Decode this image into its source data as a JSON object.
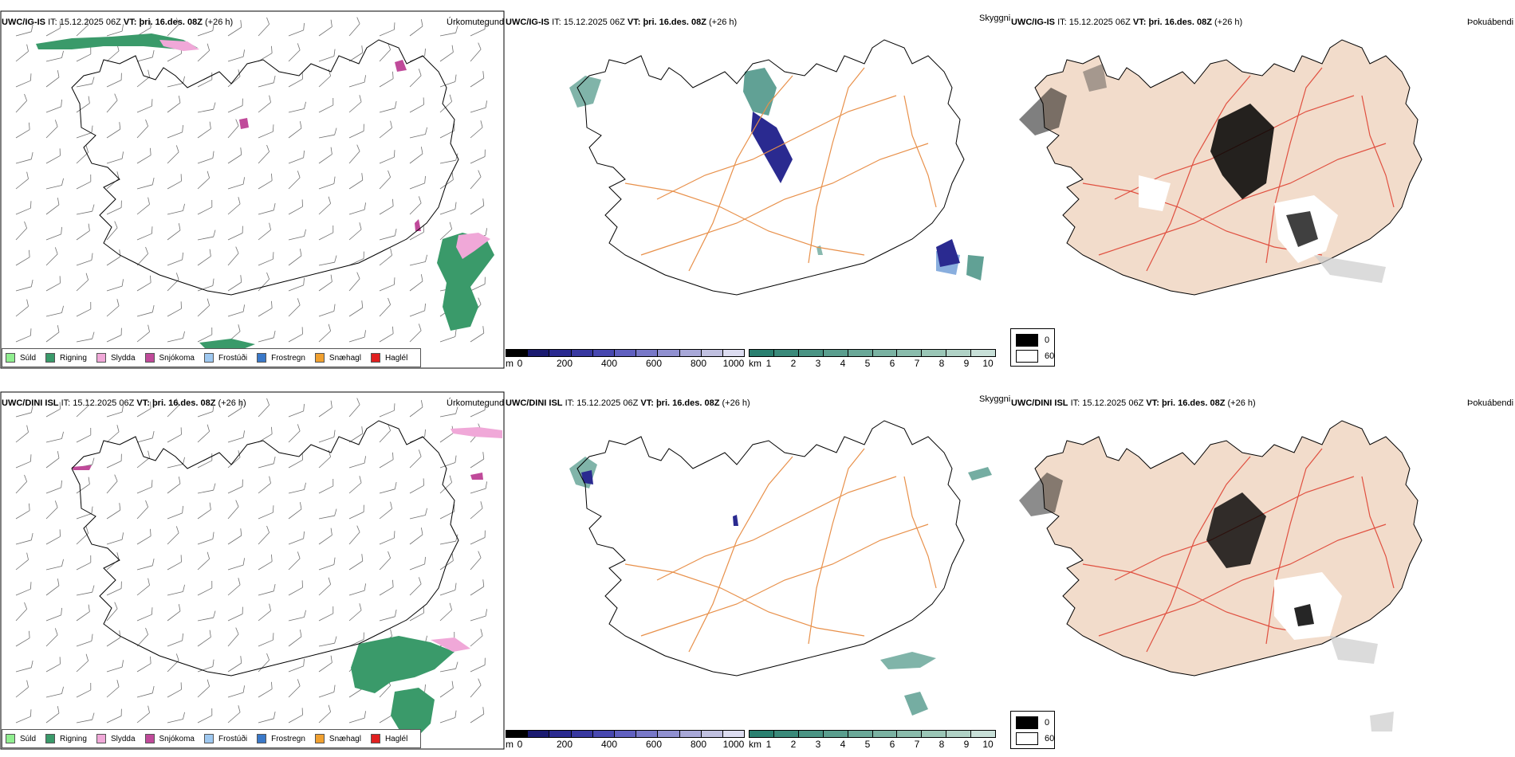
{
  "rows": [
    {
      "windmap": {
        "model": "UWC/IG-IS",
        "it_label": "IT:",
        "it_value": "15.12.2025 06Z",
        "vt_label": "VT:",
        "vt_value": "þri. 16.des. 08Z",
        "lead": "(+26 h)",
        "title": "Úrkomutegund"
      },
      "vismap": {
        "model": "UWC/IG-IS",
        "it_label": "IT:",
        "it_value": "15.12.2025 06Z",
        "vt_label": "VT:",
        "vt_value": "þri. 16.des. 08Z",
        "lead": "(+26 h)",
        "title": "Skyggni"
      },
      "fogmap": {
        "model": "UWC/IG-IS",
        "it_label": "IT:",
        "it_value": "15.12.2025 06Z",
        "vt_label": "VT:",
        "vt_value": "þri. 16.des. 08Z",
        "lead": "(+26 h)",
        "title": "Þokuábendi"
      }
    },
    {
      "windmap": {
        "model": "UWC/DINI ISL",
        "it_label": "IT:",
        "it_value": "15.12.2025 06Z",
        "vt_label": "VT:",
        "vt_value": "þri. 16.des. 08Z",
        "lead": "(+26 h)",
        "title": "Úrkomutegund"
      },
      "vismap": {
        "model": "UWC/DINI ISL",
        "it_label": "IT:",
        "it_value": "15.12.2025 06Z",
        "vt_label": "VT:",
        "vt_value": "þri. 16.des. 08Z",
        "lead": "(+26 h)",
        "title": "Skyggni"
      },
      "fogmap": {
        "model": "UWC/DINI ISL",
        "it_label": "IT:",
        "it_value": "15.12.2025 06Z",
        "vt_label": "VT:",
        "vt_value": "þri. 16.des. 08Z",
        "lead": "(+26 h)",
        "title": "Þokuábendi"
      }
    }
  ],
  "precip_legend": [
    {
      "label": "Súld",
      "color": "#90ee90"
    },
    {
      "label": "Rigning",
      "color": "#3a9a6a"
    },
    {
      "label": "Slydda",
      "color": "#f0a8d8"
    },
    {
      "label": "Snjókoma",
      "color": "#c04a9a"
    },
    {
      "label": "Frostúði",
      "color": "#9ec8f0"
    },
    {
      "label": "Frostregn",
      "color": "#3a78c8"
    },
    {
      "label": "Snæhagl",
      "color": "#f0a030"
    },
    {
      "label": "Haglél",
      "color": "#e02020"
    }
  ],
  "vis_scale_m": {
    "unit": "m",
    "ticks": [
      "0",
      "200",
      "400",
      "600",
      "800",
      "1000"
    ],
    "colors": [
      "#000000",
      "#1a1a70",
      "#2a2a90",
      "#3838a0",
      "#4848b0",
      "#6060c0",
      "#7878c8",
      "#9090d0",
      "#a8a8d8",
      "#c0c0e0",
      "#dcdcf0"
    ]
  },
  "vis_scale_km": {
    "unit": "km",
    "ticks": [
      "1",
      "2",
      "3",
      "4",
      "5",
      "6",
      "7",
      "8",
      "9",
      "10"
    ],
    "colors": [
      "#2a8070",
      "#3a8a7a",
      "#4a9484",
      "#5a9e8e",
      "#6aa898",
      "#7ab2a2",
      "#8abcac",
      "#9ac6b6",
      "#b0d2c6",
      "#c8e0d8"
    ]
  },
  "fog_legend": {
    "items": [
      {
        "label": "0",
        "color": "#000000"
      },
      {
        "label": "60",
        "color": "#ffffff"
      }
    ]
  },
  "colors": {
    "coast": "#000000",
    "roads_orange": "#e8904a",
    "roads_red": "#e05040",
    "fog_land": "#f2dccb",
    "wind_barb": "#707070",
    "rivers": "#8090e0"
  }
}
